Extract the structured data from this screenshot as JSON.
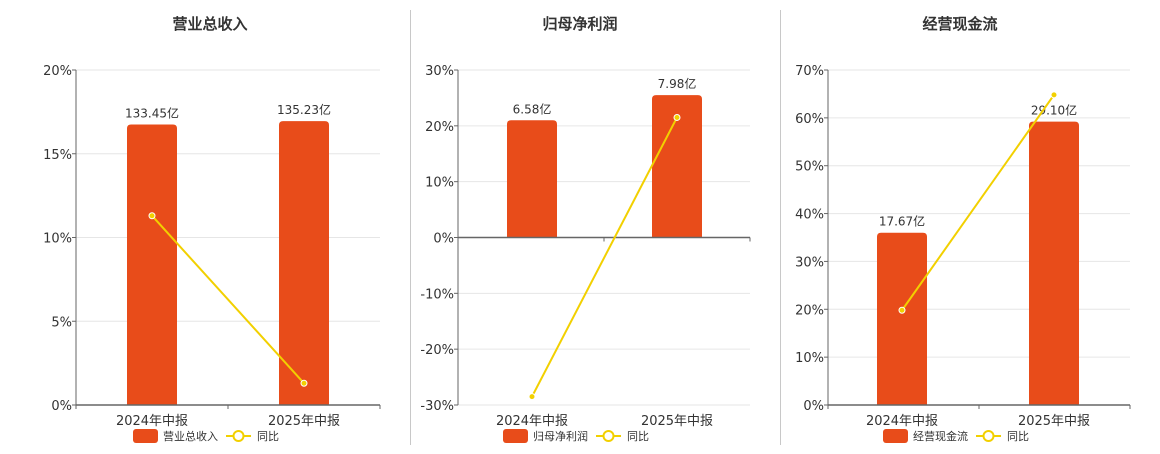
{
  "colors": {
    "bar": "#e84c1a",
    "line": "#f2d000",
    "grid": "#e6e6e6",
    "axis": "#666666",
    "text": "#333333"
  },
  "chart_data": [
    {
      "type": "bar",
      "title": "营业总收入",
      "categories": [
        "2024年中报",
        "2025年中报"
      ],
      "series": [
        {
          "name": "营业总收入",
          "type": "bar",
          "values": [
            16.75,
            16.95
          ],
          "labels": [
            "133.45亿",
            "135.23亿"
          ]
        },
        {
          "name": "同比",
          "type": "line",
          "values": [
            11.3,
            1.3
          ]
        }
      ],
      "y_ticks": [
        "20%",
        "15%",
        "10%",
        "5%",
        "0%"
      ],
      "ylim": [
        0,
        20
      ],
      "legend": "bottom"
    },
    {
      "type": "bar",
      "title": "归母净利润",
      "categories": [
        "2024年中报",
        "2025年中报"
      ],
      "series": [
        {
          "name": "归母净利润",
          "type": "bar",
          "values": [
            21,
            25.5
          ],
          "labels": [
            "6.58亿",
            "7.98亿"
          ]
        },
        {
          "name": "同比",
          "type": "line",
          "values": [
            -28.5,
            21.5
          ]
        }
      ],
      "y_ticks": [
        "30%",
        "20%",
        "10%",
        "0%",
        "-10%",
        "-20%",
        "-30%"
      ],
      "ylim": [
        -30,
        30
      ],
      "legend": "bottom"
    },
    {
      "type": "bar",
      "title": "经营现金流",
      "categories": [
        "2024年中报",
        "2025年中报"
      ],
      "series": [
        {
          "name": "经营现金流",
          "type": "bar",
          "values": [
            36,
            59.2
          ],
          "labels": [
            "17.67亿",
            "29.10亿"
          ]
        },
        {
          "name": "同比",
          "type": "line",
          "values": [
            19.8,
            64.8
          ]
        }
      ],
      "y_ticks": [
        "70%",
        "60%",
        "50%",
        "40%",
        "30%",
        "20%",
        "10%",
        "0%"
      ],
      "ylim": [
        0,
        70
      ],
      "legend": "bottom"
    }
  ]
}
